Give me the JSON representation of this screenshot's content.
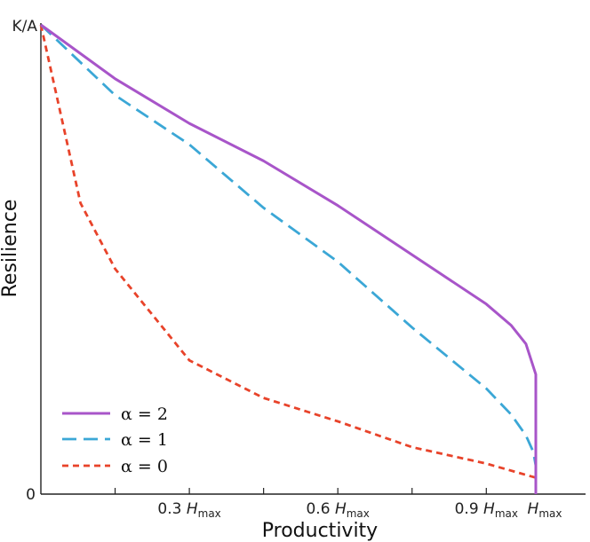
{
  "chart_data": {
    "type": "line",
    "xlabel": "Productivity",
    "ylabel": "Resilience",
    "x_ticks": [
      {
        "main": "0.3 ",
        "h": "H",
        "sub": "max"
      },
      {
        "main": "0.6 ",
        "h": "H",
        "sub": "max"
      },
      {
        "main": "0.9 ",
        "h": "H",
        "sub": "max"
      },
      {
        "main": "",
        "h": "H",
        "sub": "max"
      }
    ],
    "y_ticks": [
      "K/A",
      "0"
    ],
    "xlim": [
      0,
      1.01
    ],
    "ylim": [
      0,
      1
    ],
    "series": [
      {
        "name": "α = 2",
        "color": "#a855c9",
        "style": "solid",
        "x": [
          0,
          0.15,
          0.3,
          0.45,
          0.6,
          0.75,
          0.9,
          0.95,
          0.98,
          1.0,
          1.0
        ],
        "y": [
          1.0,
          0.885,
          0.79,
          0.71,
          0.615,
          0.51,
          0.405,
          0.36,
          0.32,
          0.255,
          0.0
        ]
      },
      {
        "name": "α = 1",
        "color": "#3ba7d6",
        "style": "dashed",
        "x": [
          0,
          0.15,
          0.3,
          0.45,
          0.6,
          0.75,
          0.9,
          0.95,
          0.98,
          0.995,
          1.0
        ],
        "y": [
          1.0,
          0.85,
          0.745,
          0.61,
          0.495,
          0.355,
          0.225,
          0.17,
          0.125,
          0.09,
          0.06
        ]
      },
      {
        "name": "α = 0",
        "color": "#e8432a",
        "style": "dotted-dash",
        "x": [
          0,
          0.08,
          0.15,
          0.3,
          0.45,
          0.6,
          0.75,
          0.9,
          1.0
        ],
        "y": [
          1.0,
          0.62,
          0.48,
          0.285,
          0.205,
          0.155,
          0.1,
          0.065,
          0.035
        ]
      }
    ],
    "legend": {
      "position": "bottom-left",
      "entries": [
        "α = 2",
        "α = 1",
        "α = 0"
      ]
    },
    "grid": false
  }
}
